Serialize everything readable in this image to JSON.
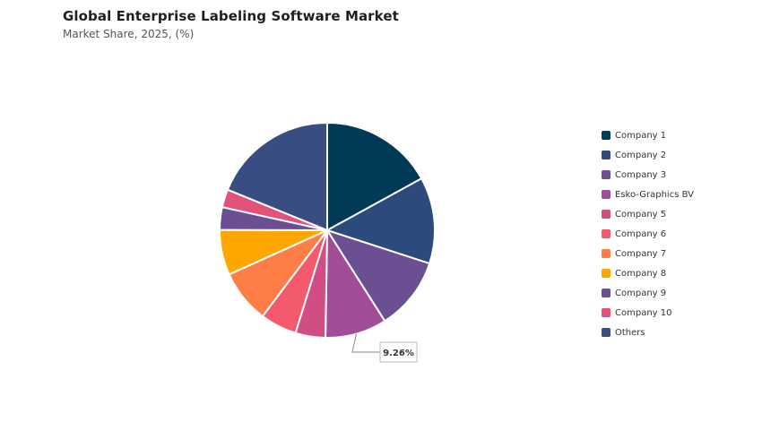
{
  "header": {
    "title": "Global Enterprise Labeling Software Market",
    "subtitle": "Market Share, 2025, (%)"
  },
  "chart_data": {
    "type": "pie",
    "title": "Global Enterprise Labeling Software Market",
    "subtitle": "Market Share, 2025, (%)",
    "legend_position": "right",
    "slices": [
      {
        "name": "Company 1",
        "value": 17.0,
        "color": "#003a57"
      },
      {
        "name": "Company 2",
        "value": 13.0,
        "color": "#2c4a7c"
      },
      {
        "name": "Company 3",
        "value": 11.0,
        "color": "#6a4f93"
      },
      {
        "name": "Esko-Graphics BV",
        "value": 9.26,
        "color": "#a24d98"
      },
      {
        "name": "Company 5",
        "value": 4.5,
        "color": "#d04e82"
      },
      {
        "name": "Company 6",
        "value": 5.5,
        "color": "#f45a6e"
      },
      {
        "name": "Company 7",
        "value": 8.0,
        "color": "#ff7d47"
      },
      {
        "name": "Company 8",
        "value": 6.8,
        "color": "#ffa600"
      },
      {
        "name": "Company 9",
        "value": 3.4,
        "color": "#6a4f93"
      },
      {
        "name": "Company 10",
        "value": 2.7,
        "color": "#e2517a"
      },
      {
        "name": "Others",
        "value": 18.84,
        "color": "#384e82"
      }
    ],
    "callout": {
      "slice": "Esko-Graphics BV",
      "label": "9.26%"
    }
  }
}
